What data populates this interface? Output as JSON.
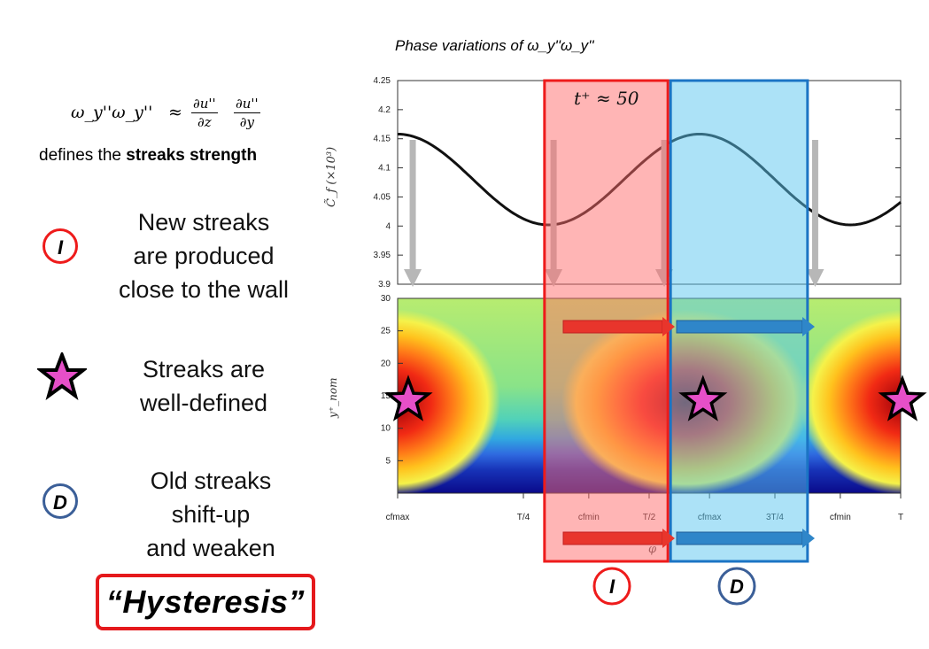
{
  "left_panel": {
    "formula": {
      "lhs": "ω_y''ω_y''",
      "approx": "≈",
      "frac1_num": "∂u''",
      "frac1_den": "∂z",
      "frac2_num": "∂u''",
      "frac2_den": "∂y"
    },
    "define_prefix": "defines the ",
    "define_bold": "streaks strength",
    "items": [
      {
        "badge": "I",
        "color": "#ee1b1b",
        "lines": [
          "New streaks",
          "are produced",
          "close to the wall"
        ]
      },
      {
        "badge": "star",
        "color": "#e64fc8",
        "lines": [
          "Streaks are",
          "well-defined"
        ]
      },
      {
        "badge": "D",
        "color": "#3b5f98",
        "lines": [
          "Old streaks",
          "shift-up",
          "and weaken"
        ]
      }
    ],
    "hysteresis": "“Hysteresis”"
  },
  "chart_title": "Phase variations of ω_y''ω_y''",
  "chart_data": [
    {
      "type": "line",
      "ylabel": "C̃_f (×10³)",
      "ylim": [
        3.9,
        4.25
      ],
      "yticks": [
        3.9,
        3.95,
        4,
        4.05,
        4.1,
        4.15,
        4.2,
        4.25
      ],
      "ytick_labels": [
        "3.9",
        "3.95",
        "4",
        "4.05",
        "4.1",
        "4.15",
        "4.2",
        "4.25"
      ],
      "series": [
        {
          "mean": 4.08,
          "amplitude": 0.078,
          "phase_of_max": 0
        }
      ],
      "phase_range": [
        0,
        1
      ],
      "annotation": "t⁺ ≈ 50"
    },
    {
      "type": "heatmap",
      "ylabel": "y⁺_nom",
      "ylim": [
        0,
        30
      ],
      "yticks": [
        5,
        10,
        15,
        20,
        25,
        30
      ],
      "ytick_labels": [
        "5",
        "10",
        "15",
        "20",
        "25",
        "30"
      ],
      "xtick_labels": [
        "cfmax",
        "T/4",
        "cfmin",
        "T/2",
        "cfmax",
        "3T/4",
        "cfmin",
        "T"
      ],
      "xticks": [
        0,
        0.25,
        0.38,
        0.5,
        0.62,
        0.75,
        0.88,
        1
      ],
      "xlabel": "φ",
      "maxima": [
        {
          "phase": 0.0,
          "y": 14
        },
        {
          "phase": 0.6,
          "y": 14
        },
        {
          "phase": 1.0,
          "y": 14
        }
      ]
    }
  ],
  "phase_boxes": [
    {
      "label": "I",
      "from": 0.38,
      "to": 0.62,
      "color": "#ff7a7a"
    },
    {
      "label": "D",
      "from": 0.62,
      "to": 0.88,
      "color": "#6fcdef"
    }
  ],
  "colors": {
    "red": "#ee1b1b",
    "blue": "#3b5f98",
    "star": "#e64fc8"
  }
}
